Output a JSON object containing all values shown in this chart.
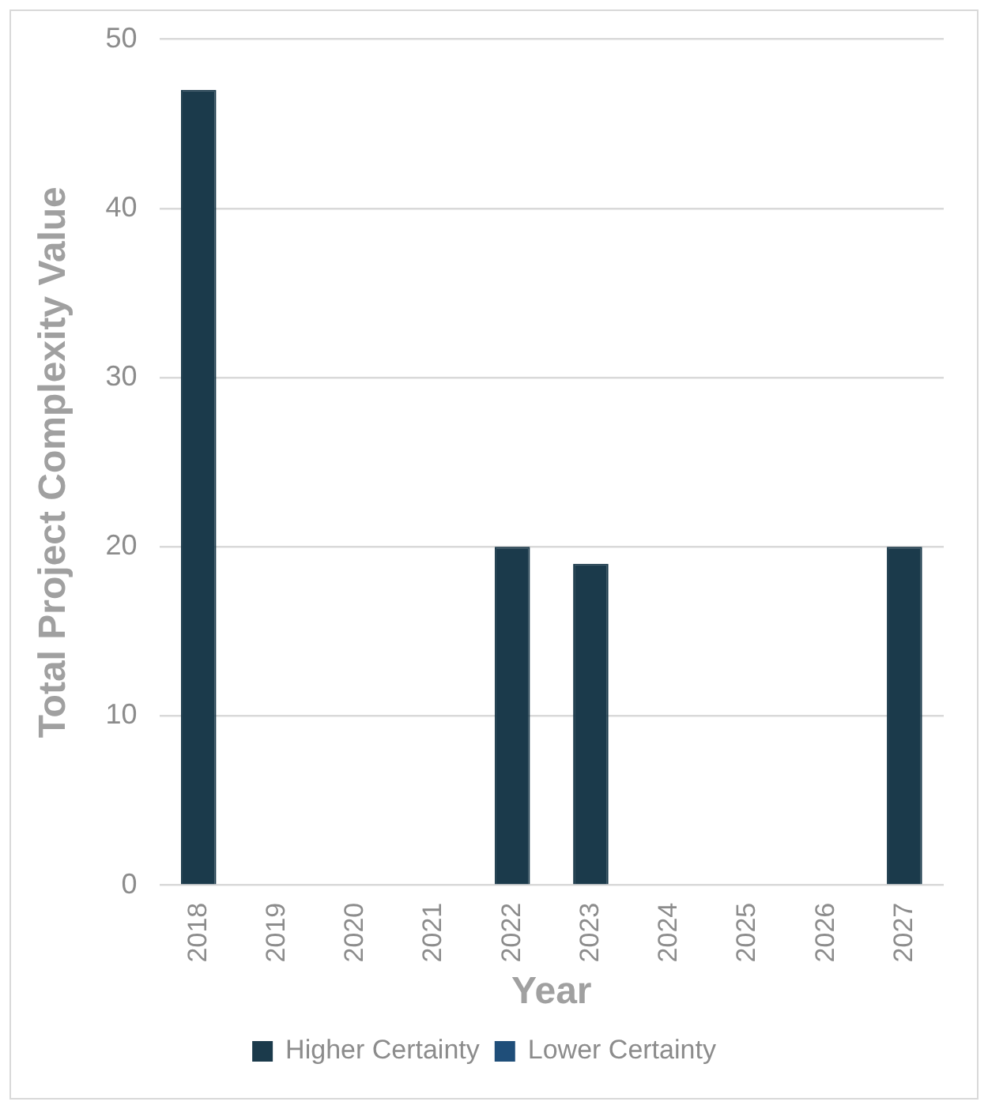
{
  "chart_data": {
    "type": "bar",
    "xlabel": "Year",
    "ylabel": "Total Project Complexity Value",
    "categories": [
      "2018",
      "2019",
      "2020",
      "2021",
      "2022",
      "2023",
      "2024",
      "2025",
      "2026",
      "2027"
    ],
    "series": [
      {
        "name": "Higher Certainty",
        "color": "#1b3a4b",
        "values": [
          47,
          null,
          null,
          null,
          20,
          19,
          null,
          null,
          null,
          20
        ]
      },
      {
        "name": "Lower Certainty",
        "color": "#1f4e79",
        "values": [
          null,
          null,
          null,
          null,
          null,
          null,
          null,
          null,
          null,
          null
        ]
      }
    ],
    "stacked": true,
    "ylim": [
      0,
      50
    ],
    "yticks": [
      0,
      10,
      20,
      30,
      40,
      50
    ],
    "grid": "y",
    "legend": "bottom"
  }
}
